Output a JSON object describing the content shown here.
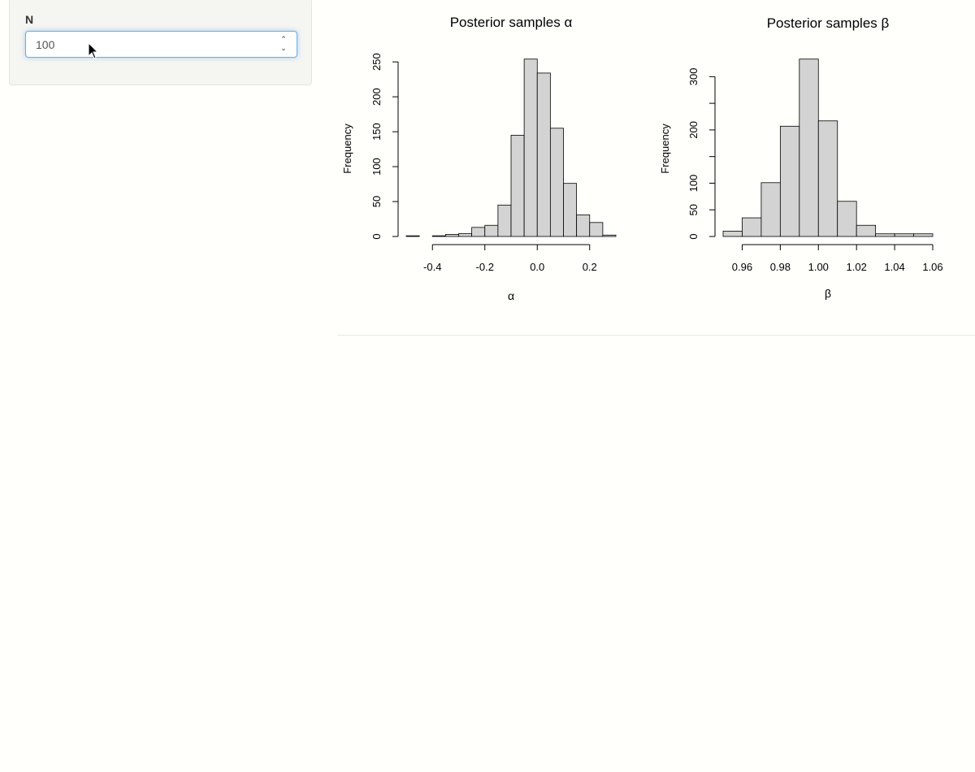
{
  "sidebar": {
    "input_label": "N",
    "input_value": "100"
  },
  "chart_data": [
    {
      "type": "bar",
      "title": "Posterior samples α",
      "xlabel": "α",
      "ylabel": "Frequency",
      "bin_start": -0.5,
      "bin_width": 0.05,
      "values": [
        1,
        0,
        1,
        3,
        4,
        13,
        16,
        45,
        145,
        254,
        234,
        155,
        76,
        31,
        20,
        2
      ],
      "xlim": [
        -0.4,
        0.2
      ],
      "xticks": [
        -0.4,
        -0.2,
        0.0,
        0.2
      ],
      "xtick_labels": [
        "-0.4",
        "-0.2",
        "0.0",
        "0.2"
      ],
      "ylim": [
        0,
        250
      ],
      "yticks": [
        0,
        50,
        100,
        150,
        200,
        250
      ],
      "ytick_labels": [
        "0",
        "50",
        "100",
        "150",
        "200",
        "250"
      ],
      "bar_color": "#d3d3d3"
    },
    {
      "type": "bar",
      "title": "Posterior samples β",
      "xlabel": "β",
      "ylabel": "Frequency",
      "bin_start": 0.95,
      "bin_width": 0.01,
      "values": [
        10,
        35,
        101,
        207,
        333,
        217,
        66,
        21,
        5,
        5,
        5
      ],
      "xlim": [
        0.96,
        1.06
      ],
      "xticks": [
        0.96,
        0.98,
        1.0,
        1.02,
        1.04,
        1.06
      ],
      "xtick_labels": [
        "0.96",
        "0.98",
        "1.00",
        "1.02",
        "1.04",
        "1.06"
      ],
      "ylim": [
        0,
        300
      ],
      "yticks": [
        0,
        50,
        100,
        150,
        200,
        250,
        300
      ],
      "ytick_labels": [
        "0",
        "50",
        "100",
        "",
        "200",
        "",
        "300"
      ],
      "bar_color": "#d3d3d3"
    }
  ]
}
